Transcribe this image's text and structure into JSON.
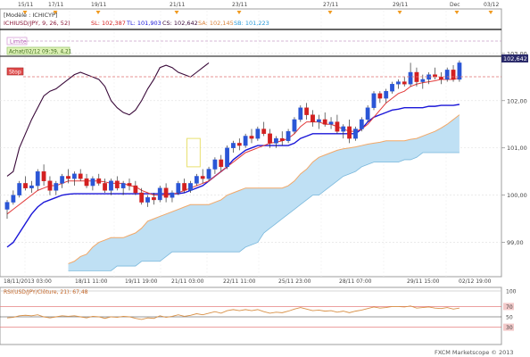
{
  "chart_data": {
    "type": "candlestick",
    "instrument": "[Modèle : ICHICYP]",
    "indicator_legend": {
      "ichimoku": "ICHIUSD/JPY, 9, 26, 52)",
      "sl": "SL: 102,387",
      "tl": "TL: 101,903",
      "cs": "CS: 102,642",
      "sa": "SA: 102,145",
      "sb": "SB: 101,223"
    },
    "annotations": {
      "limit": "Limite",
      "achat": "Achat/02/12 09:39, 4,21",
      "stop": "Stop"
    },
    "price_label": "102,642",
    "y_ticks": [
      "103,00",
      "102,00",
      "101,00",
      "100,00",
      "99,00"
    ],
    "y_tick_values": [
      103,
      102,
      101,
      100,
      99
    ],
    "ylim": [
      98.35,
      103.45
    ],
    "x_labels_bottom": [
      "18/11/2013 03:00",
      "18/11 11:00",
      "19/11 19:00",
      "21/11 03:00",
      "22/11 11:00",
      "25/11 23:00",
      "28/11 07:00",
      "29/11 15:00",
      "02/12 19:00"
    ],
    "x_labels_top": [
      "15/11",
      "17/11",
      "19/11",
      "21/11",
      "23/11",
      "27/11",
      "29/11",
      "Dec",
      "03/12"
    ],
    "candles": [
      [
        99.7,
        99.9,
        99.5,
        99.85
      ],
      [
        99.85,
        100.1,
        99.8,
        100.0
      ],
      [
        100.0,
        100.3,
        99.95,
        100.25
      ],
      [
        100.25,
        100.4,
        100.1,
        100.15
      ],
      [
        100.15,
        100.3,
        100.05,
        100.2
      ],
      [
        100.2,
        100.55,
        100.1,
        100.5
      ],
      [
        100.5,
        100.65,
        100.2,
        100.3
      ],
      [
        100.3,
        100.4,
        100.0,
        100.1
      ],
      [
        100.1,
        100.3,
        100.0,
        100.25
      ],
      [
        100.25,
        100.45,
        100.15,
        100.4
      ],
      [
        100.4,
        100.55,
        100.25,
        100.35
      ],
      [
        100.35,
        100.5,
        100.2,
        100.45
      ],
      [
        100.45,
        100.55,
        100.3,
        100.35
      ],
      [
        100.35,
        100.45,
        100.15,
        100.2
      ],
      [
        100.2,
        100.4,
        100.1,
        100.35
      ],
      [
        100.35,
        100.45,
        100.2,
        100.25
      ],
      [
        100.25,
        100.35,
        100.05,
        100.1
      ],
      [
        100.1,
        100.35,
        100.0,
        100.3
      ],
      [
        100.3,
        100.4,
        100.1,
        100.15
      ],
      [
        100.15,
        100.3,
        100.0,
        100.25
      ],
      [
        100.25,
        100.35,
        100.1,
        100.2
      ],
      [
        100.2,
        100.3,
        100.0,
        100.05
      ],
      [
        100.05,
        100.15,
        99.8,
        99.85
      ],
      [
        99.85,
        100.0,
        99.75,
        99.95
      ],
      [
        99.95,
        100.05,
        99.8,
        99.9
      ],
      [
        99.9,
        100.2,
        99.85,
        100.15
      ],
      [
        100.15,
        100.25,
        99.85,
        99.95
      ],
      [
        99.95,
        100.1,
        99.85,
        100.05
      ],
      [
        100.05,
        100.3,
        100.0,
        100.25
      ],
      [
        100.25,
        100.35,
        100.05,
        100.1
      ],
      [
        100.1,
        100.3,
        100.05,
        100.25
      ],
      [
        100.25,
        100.45,
        100.2,
        100.4
      ],
      [
        100.4,
        100.55,
        100.25,
        100.35
      ],
      [
        100.35,
        100.6,
        100.3,
        100.55
      ],
      [
        100.55,
        100.8,
        100.45,
        100.75
      ],
      [
        100.75,
        100.85,
        100.5,
        100.6
      ],
      [
        100.6,
        101.05,
        100.55,
        101.0
      ],
      [
        101.0,
        101.15,
        100.9,
        101.1
      ],
      [
        101.1,
        101.2,
        100.95,
        101.05
      ],
      [
        101.05,
        101.3,
        101.0,
        101.25
      ],
      [
        101.25,
        101.4,
        101.1,
        101.2
      ],
      [
        101.2,
        101.45,
        101.15,
        101.4
      ],
      [
        101.4,
        101.55,
        101.25,
        101.3
      ],
      [
        101.3,
        101.4,
        101.0,
        101.1
      ],
      [
        101.1,
        101.25,
        101.0,
        101.2
      ],
      [
        101.2,
        101.35,
        101.05,
        101.15
      ],
      [
        101.15,
        101.4,
        101.1,
        101.35
      ],
      [
        101.35,
        101.65,
        101.3,
        101.6
      ],
      [
        101.6,
        101.9,
        101.55,
        101.85
      ],
      [
        101.85,
        101.95,
        101.6,
        101.7
      ],
      [
        101.7,
        101.8,
        101.45,
        101.55
      ],
      [
        101.55,
        101.7,
        101.4,
        101.6
      ],
      [
        101.6,
        101.75,
        101.45,
        101.5
      ],
      [
        101.5,
        101.65,
        101.4,
        101.55
      ],
      [
        101.55,
        101.7,
        101.3,
        101.35
      ],
      [
        101.35,
        101.5,
        101.2,
        101.45
      ],
      [
        101.45,
        101.6,
        101.1,
        101.2
      ],
      [
        101.2,
        101.45,
        101.15,
        101.4
      ],
      [
        101.4,
        101.65,
        101.35,
        101.6
      ],
      [
        101.6,
        101.9,
        101.55,
        101.85
      ],
      [
        101.85,
        102.2,
        101.8,
        102.15
      ],
      [
        102.15,
        102.2,
        101.95,
        102.05
      ],
      [
        102.05,
        102.25,
        101.95,
        102.2
      ],
      [
        102.2,
        102.4,
        102.15,
        102.35
      ],
      [
        102.35,
        102.45,
        102.25,
        102.4
      ],
      [
        102.4,
        102.5,
        102.3,
        102.35
      ],
      [
        102.35,
        102.8,
        102.3,
        102.6
      ],
      [
        102.6,
        102.7,
        102.3,
        102.4
      ],
      [
        102.4,
        102.55,
        102.25,
        102.45
      ],
      [
        102.45,
        102.6,
        102.35,
        102.55
      ],
      [
        102.55,
        102.7,
        102.45,
        102.5
      ],
      [
        102.5,
        102.6,
        102.35,
        102.45
      ],
      [
        102.45,
        102.7,
        102.4,
        102.65
      ],
      [
        102.65,
        102.75,
        102.4,
        102.45
      ],
      [
        102.45,
        102.85,
        102.4,
        102.8
      ]
    ],
    "tenkan": [
      99.6,
      99.7,
      99.8,
      99.9,
      100.0,
      100.1,
      100.15,
      100.2,
      100.2,
      100.25,
      100.3,
      100.3,
      100.3,
      100.3,
      100.3,
      100.3,
      100.28,
      100.25,
      100.25,
      100.25,
      100.2,
      100.18,
      100.1,
      100.05,
      100.0,
      100.0,
      100.0,
      100.02,
      100.05,
      100.1,
      100.15,
      100.2,
      100.25,
      100.3,
      100.4,
      100.5,
      100.6,
      100.7,
      100.8,
      100.9,
      100.95,
      101.0,
      101.05,
      101.1,
      101.12,
      101.15,
      101.2,
      101.3,
      101.45,
      101.55,
      101.55,
      101.55,
      101.5,
      101.5,
      101.45,
      101.4,
      101.35,
      101.35,
      101.4,
      101.5,
      101.65,
      101.8,
      101.95,
      102.05,
      102.15,
      102.2,
      102.3,
      102.35,
      102.38,
      102.4,
      102.42,
      102.45,
      102.45,
      102.45,
      102.48
    ],
    "kijun": [
      98.9,
      99.0,
      99.2,
      99.4,
      99.6,
      99.75,
      99.85,
      99.9,
      99.95,
      100.0,
      100.02,
      100.03,
      100.03,
      100.03,
      100.03,
      100.03,
      100.03,
      100.03,
      100.03,
      100.03,
      100.03,
      100.03,
      100.03,
      100.03,
      100.03,
      100.03,
      100.03,
      100.03,
      100.03,
      100.05,
      100.1,
      100.15,
      100.2,
      100.3,
      100.4,
      100.5,
      100.6,
      100.75,
      100.85,
      100.95,
      101.0,
      101.05,
      101.05,
      101.05,
      101.05,
      101.05,
      101.05,
      101.1,
      101.2,
      101.25,
      101.3,
      101.3,
      101.3,
      101.3,
      101.3,
      101.3,
      101.3,
      101.3,
      101.4,
      101.55,
      101.65,
      101.7,
      101.75,
      101.8,
      101.82,
      101.85,
      101.85,
      101.85,
      101.85,
      101.88,
      101.88,
      101.9,
      101.9,
      101.9,
      101.92
    ],
    "chikou": [
      100.4,
      100.5,
      101.0,
      101.3,
      101.6,
      101.85,
      102.1,
      102.2,
      102.25,
      102.35,
      102.45,
      102.55,
      102.6,
      102.55,
      102.5,
      102.45,
      102.3,
      102.0,
      101.85,
      101.75,
      101.7,
      101.8,
      102.0,
      102.25,
      102.45,
      102.7,
      102.75,
      102.7,
      102.6,
      102.55,
      102.5,
      102.6,
      102.7,
      102.8
    ],
    "span_a": [
      98.55,
      98.6,
      98.7,
      98.75,
      98.9,
      99.0,
      99.05,
      99.1,
      99.1,
      99.1,
      99.15,
      99.2,
      99.3,
      99.45,
      99.5,
      99.55,
      99.6,
      99.65,
      99.7,
      99.75,
      99.8,
      99.8,
      99.8,
      99.8,
      99.85,
      99.9,
      100.0,
      100.05,
      100.1,
      100.15,
      100.15,
      100.15,
      100.15,
      100.15,
      100.15,
      100.15,
      100.2,
      100.3,
      100.45,
      100.55,
      100.7,
      100.8,
      100.85,
      100.9,
      100.95,
      100.98,
      101.0,
      101.02,
      101.05,
      101.08,
      101.1,
      101.12,
      101.15,
      101.15,
      101.15,
      101.15,
      101.18,
      101.2,
      101.25,
      101.3,
      101.35,
      101.42,
      101.5,
      101.6,
      101.7
    ],
    "span_b": [
      98.4,
      98.4,
      98.4,
      98.4,
      98.4,
      98.4,
      98.4,
      98.4,
      98.5,
      98.5,
      98.5,
      98.5,
      98.6,
      98.6,
      98.6,
      98.6,
      98.7,
      98.8,
      98.8,
      98.8,
      98.8,
      98.8,
      98.8,
      98.8,
      98.8,
      98.8,
      98.8,
      98.8,
      98.8,
      98.9,
      98.95,
      99.0,
      99.2,
      99.3,
      99.4,
      99.5,
      99.6,
      99.7,
      99.8,
      99.9,
      100.0,
      100.0,
      100.1,
      100.2,
      100.3,
      100.4,
      100.45,
      100.5,
      100.6,
      100.65,
      100.7,
      100.7,
      100.7,
      100.7,
      100.7,
      100.75,
      100.75,
      100.8,
      100.9,
      100.9,
      100.9,
      100.9,
      100.9,
      100.9,
      100.9
    ],
    "rsi_label": "RSI(USD/JPY/Clôture, 21): 67,48",
    "rsi_ticks": [
      "100",
      "70",
      "50",
      "30"
    ],
    "rsi": [
      48,
      49,
      52,
      53,
      52,
      54,
      50,
      48,
      50,
      52,
      51,
      52,
      50,
      48,
      51,
      50,
      47,
      50,
      49,
      51,
      50,
      47,
      45,
      48,
      47,
      52,
      49,
      51,
      54,
      51,
      53,
      56,
      54,
      57,
      60,
      57,
      62,
      64,
      62,
      64,
      62,
      64,
      60,
      57,
      59,
      58,
      61,
      65,
      68,
      65,
      62,
      63,
      61,
      62,
      59,
      61,
      58,
      61,
      63,
      66,
      69,
      67,
      68,
      70,
      70,
      69,
      71,
      67,
      68,
      69,
      67,
      66,
      68,
      65,
      67
    ],
    "watermark": "FXCM Marketscope © 2013",
    "colors": {
      "up": "#2b56d6",
      "down": "#d32020",
      "tenkan": "#e23b3b",
      "kijun": "#1a16d8",
      "chikou": "#3a0a3a",
      "span_a": "#f2a868",
      "cloud": "#bfe0f4",
      "rsi": "#d89046",
      "limit": "#ffffff",
      "achat": "#dff2b8",
      "stop": "#e04c4c"
    }
  }
}
